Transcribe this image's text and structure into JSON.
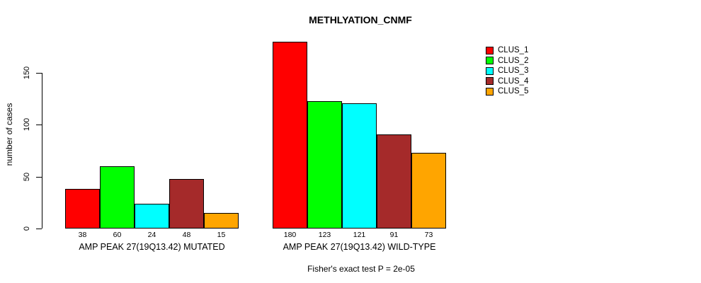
{
  "chart_data": {
    "type": "bar",
    "title": "METHLYATION_CNMF",
    "ylabel": "number of cases",
    "xlabel": "",
    "ylim": [
      0,
      150
    ],
    "yticks": [
      0,
      50,
      100,
      150
    ],
    "grid": false,
    "legend_position": "top-right",
    "legend": [
      "CLUS_1",
      "CLUS_2",
      "CLUS_3",
      "CLUS_4",
      "CLUS_5"
    ],
    "series_colors": [
      "#FF0000",
      "#00FF00",
      "#00FFFF",
      "#A52A2A",
      "#FFA500"
    ],
    "categories": [
      "AMP PEAK 27(19Q13.42) MUTATED",
      "AMP PEAK 27(19Q13.42) WILD-TYPE"
    ],
    "groups": [
      {
        "label": "AMP PEAK 27(19Q13.42) MUTATED",
        "values": [
          38,
          60,
          24,
          48,
          15
        ]
      },
      {
        "label": "AMP PEAK 27(19Q13.42) WILD-TYPE",
        "values": [
          180,
          123,
          121,
          91,
          73
        ]
      }
    ],
    "annotation": "Fisher's exact test P = 2e-05"
  }
}
